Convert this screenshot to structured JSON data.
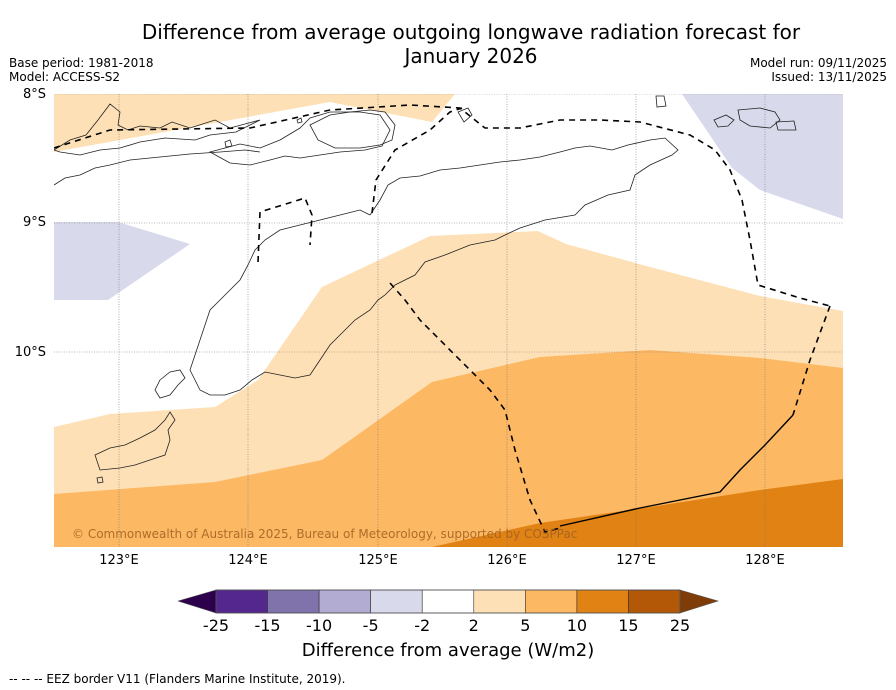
{
  "header": {
    "title_line1": "Difference from average outgoing longwave radiation forecast for",
    "title_line2": "January 2026",
    "base_period": "Base period: 1981-2018",
    "model": "Model: ACCESS-S2",
    "model_run": "Model run: 09/11/2025",
    "issued": "Issued: 13/11/2025"
  },
  "map": {
    "lat_labels": [
      "8°S",
      "9°S",
      "10°S"
    ],
    "lon_labels": [
      "123°E",
      "124°E",
      "125°E",
      "126°E",
      "127°E",
      "128°E"
    ],
    "lat_range": [
      -11.5,
      -8.0
    ],
    "lon_range": [
      122.5,
      128.6
    ],
    "copyright": "© Commonwealth of Australia 2025, Bureau of Meteorology, supported by COSPPac"
  },
  "colorbar": {
    "label": "Difference from average (W/m2)",
    "ticks": [
      "-25",
      "-15",
      "-10",
      "-5",
      "-2",
      "2",
      "5",
      "10",
      "15",
      "25"
    ],
    "colors": [
      "#54278f",
      "#8073ac",
      "#b2abd2",
      "#d8daeb",
      "#ffffff",
      "#fee0b6",
      "#fdb863",
      "#e08214",
      "#b35806"
    ],
    "under_color": "#2d004b",
    "over_color": "#7f3b08"
  },
  "footnote": "--  --  -- EEZ border V11 (Flanders Marine Institute, 2019)."
}
